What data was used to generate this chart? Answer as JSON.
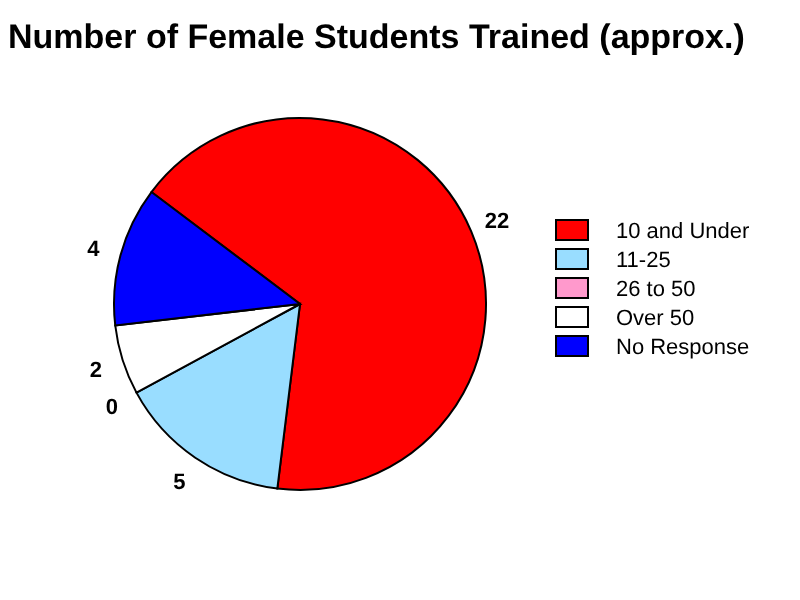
{
  "chart_data": {
    "type": "pie",
    "title": "Number of Female Students Trained (approx.)",
    "categories": [
      "10 and Under",
      "11-25",
      "26 to 50",
      "Over 50",
      "No Response"
    ],
    "values": [
      22,
      5,
      0,
      2,
      4
    ],
    "colors": [
      "#ff0000",
      "#99ddff",
      "#ff99cc",
      "#ffffff",
      "#0000ff"
    ],
    "value_labels": [
      "22",
      "5",
      "0",
      "2",
      "4"
    ],
    "legend": "right"
  }
}
